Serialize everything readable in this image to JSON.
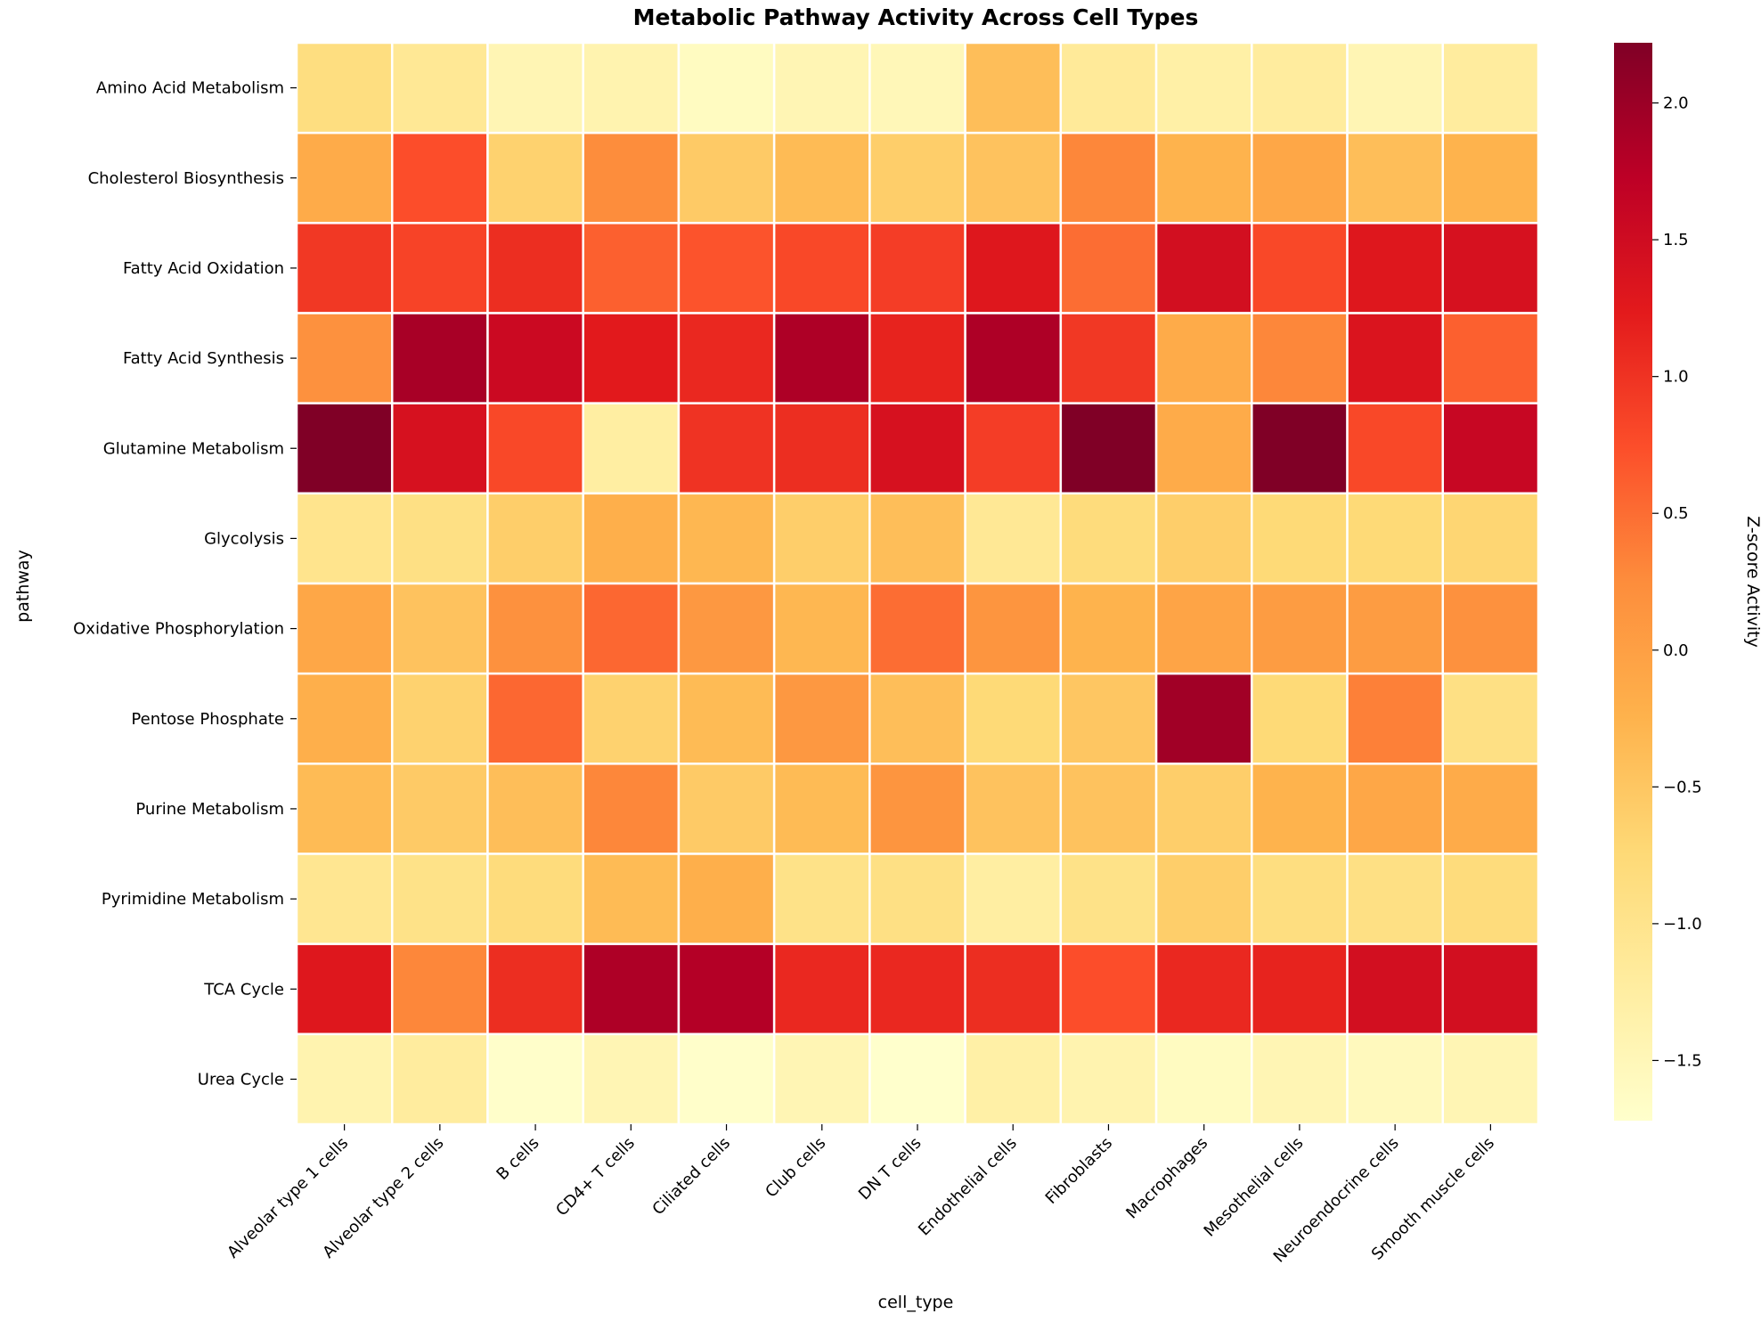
{
  "chart_data": {
    "type": "heatmap",
    "title": "Metabolic Pathway Activity Across Cell Types",
    "xlabel": "cell_type",
    "ylabel": "pathway",
    "colorbar_label": "Z-score Activity",
    "colormap": "YlOrRd",
    "vmin": -1.72,
    "vmax": 2.22,
    "colorbar_ticks": [
      2.0,
      1.5,
      1.0,
      0.5,
      0.0,
      -0.5,
      -1.0,
      -1.5
    ],
    "colorbar_tick_labels": [
      "2.0",
      "1.5",
      "1.0",
      "0.5",
      "0.0",
      "−0.5",
      "−1.0",
      "−1.5"
    ],
    "x_categories": [
      "Alveolar type 1 cells",
      "Alveolar type 2 cells",
      "B cells",
      "CD4+ T cells",
      "Ciliated cells",
      "Club cells",
      "DN T cells",
      "Endothelial cells",
      "Fibroblasts",
      "Macrophages",
      "Mesothelial cells",
      "Neuroendocrine cells",
      "Smooth muscle cells"
    ],
    "y_categories": [
      "Amino Acid Metabolism",
      "Cholesterol Biosynthesis",
      "Fatty Acid Oxidation",
      "Fatty Acid Synthesis",
      "Glutamine Metabolism",
      "Glycolysis",
      "Oxidative Phosphorylation",
      "Pentose Phosphate",
      "Purine Metabolism",
      "Pyrimidine Metabolism",
      "TCA Cycle",
      "Urea Cycle"
    ],
    "values": [
      [
        -0.85,
        -1.1,
        -1.45,
        -1.4,
        -1.6,
        -1.45,
        -1.5,
        -0.4,
        -1.15,
        -1.3,
        -1.2,
        -1.45,
        -1.2
      ],
      [
        -0.15,
        0.75,
        -0.65,
        0.25,
        -0.55,
        -0.35,
        -0.6,
        -0.45,
        0.3,
        -0.25,
        -0.1,
        -0.4,
        -0.25
      ],
      [
        0.95,
        0.85,
        1.05,
        0.6,
        0.7,
        0.8,
        0.9,
        1.3,
        0.5,
        1.45,
        0.8,
        1.3,
        1.4
      ],
      [
        0.2,
        1.9,
        1.55,
        1.25,
        1.1,
        1.85,
        1.15,
        1.85,
        0.95,
        -0.15,
        0.3,
        1.35,
        0.6
      ],
      [
        2.22,
        1.4,
        0.8,
        -1.25,
        1.0,
        1.05,
        1.4,
        0.9,
        2.22,
        -0.15,
        2.22,
        0.8,
        1.6
      ],
      [
        -1.0,
        -0.9,
        -0.6,
        -0.2,
        -0.3,
        -0.6,
        -0.4,
        -1.1,
        -0.8,
        -0.6,
        -0.75,
        -0.75,
        -0.7
      ],
      [
        -0.1,
        -0.45,
        0.2,
        0.55,
        0.1,
        -0.3,
        0.5,
        0.15,
        -0.25,
        -0.05,
        0.05,
        0.05,
        0.2
      ],
      [
        -0.2,
        -0.65,
        0.55,
        -0.65,
        -0.35,
        0.1,
        -0.4,
        -0.75,
        -0.5,
        1.95,
        -0.75,
        0.35,
        -0.9
      ],
      [
        -0.35,
        -0.55,
        -0.4,
        0.3,
        -0.55,
        -0.35,
        0.15,
        -0.45,
        -0.45,
        -0.6,
        -0.25,
        -0.1,
        -0.15
      ],
      [
        -1.05,
        -0.95,
        -0.8,
        -0.35,
        -0.2,
        -0.95,
        -0.9,
        -1.25,
        -0.95,
        -0.6,
        -0.85,
        -0.9,
        -0.8
      ],
      [
        1.3,
        0.3,
        1.05,
        1.85,
        1.8,
        1.1,
        1.1,
        1.05,
        0.75,
        1.1,
        1.15,
        1.45,
        1.45
      ],
      [
        -1.4,
        -1.2,
        -1.7,
        -1.45,
        -1.7,
        -1.45,
        -1.72,
        -1.3,
        -1.4,
        -1.6,
        -1.45,
        -1.55,
        -1.45
      ]
    ]
  }
}
